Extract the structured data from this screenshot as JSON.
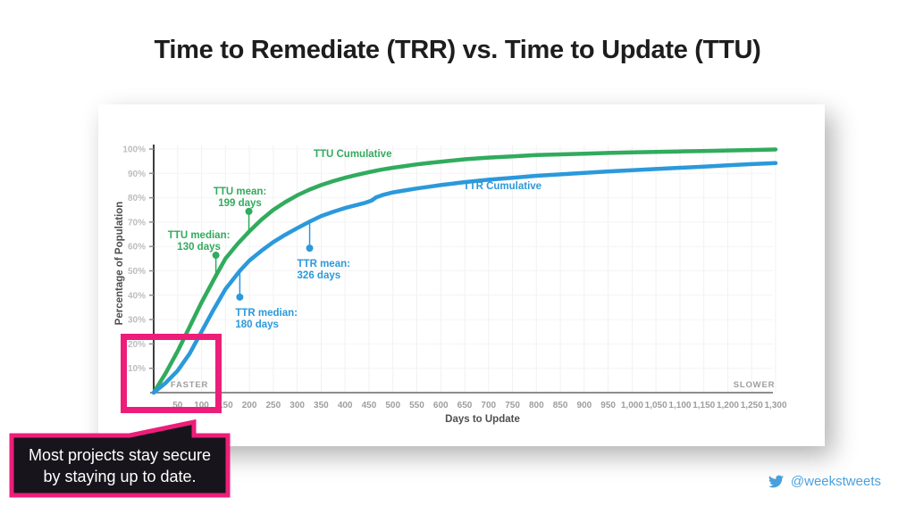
{
  "title": "Time to Remediate (TRR) vs. Time to Update (TTU)",
  "callout": {
    "line1": "Most projects stay secure",
    "line2": "by staying up to date."
  },
  "footer": {
    "handle": "@weekstweets",
    "icon": "twitter-bird-icon"
  },
  "colors": {
    "green": "#31AB5D",
    "blue": "#2B99DB",
    "pink": "#ED1E79",
    "callout_bg": "#17141C",
    "twitter_blue": "#4AA0DC",
    "title_text": "#1D1D1F",
    "axis_title": "#4F4F4F",
    "x_tick": "#9E9E9E",
    "y_tick": "#BDBDBD",
    "grid": "#F1F1F1",
    "x_axis_line": "#8E8E8E",
    "y_axis_line": "#3D3D3D"
  },
  "chart_data": {
    "type": "line",
    "title": "",
    "xlabel": "Days to Update",
    "ylabel": "Percentage of Population",
    "xlim": [
      0,
      1300
    ],
    "ylim": [
      0,
      100
    ],
    "grid": true,
    "faster_label": "FASTER",
    "slower_label": "SLOWER",
    "x_ticks": [
      50,
      100,
      150,
      200,
      250,
      300,
      350,
      400,
      450,
      500,
      550,
      600,
      650,
      700,
      750,
      800,
      850,
      900,
      950,
      1000,
      1050,
      1100,
      1150,
      1200,
      1250,
      1300
    ],
    "x_tick_labels": [
      "50",
      "100",
      "150",
      "200",
      "250",
      "300",
      "350",
      "400",
      "450",
      "500",
      "550",
      "600",
      "650",
      "700",
      "750",
      "800",
      "850",
      "900",
      "950",
      "1,000",
      "1,050",
      "1,100",
      "1,150",
      "1,200",
      "1,250",
      "1,300"
    ],
    "y_ticks": [
      10,
      20,
      30,
      40,
      50,
      60,
      70,
      80,
      90,
      100
    ],
    "y_tick_labels": [
      "10%",
      "20%",
      "30%",
      "40%",
      "50%",
      "60%",
      "70%",
      "80%",
      "90%",
      "100%"
    ],
    "series": [
      {
        "name": "TTU Cumulative",
        "color": "#31AB5D",
        "label_x": 416,
        "label_y": 96.7,
        "x": [
          0,
          25,
          50,
          75,
          100,
          130,
          150,
          175,
          199,
          225,
          250,
          275,
          300,
          325,
          350,
          375,
          400,
          425,
          450,
          475,
          500,
          525,
          550,
          575,
          600,
          650,
          700,
          750,
          800,
          850,
          900,
          950,
          1000,
          1050,
          1100,
          1150,
          1200,
          1250,
          1300
        ],
        "y": [
          0,
          8,
          17,
          27,
          37,
          48,
          55,
          61,
          66,
          71,
          75,
          78.2,
          81,
          83.3,
          85.2,
          86.8,
          88.2,
          89.4,
          90.5,
          91.5,
          92.3,
          93,
          93.7,
          94.3,
          94.8,
          95.8,
          96.5,
          97,
          97.5,
          97.8,
          98.1,
          98.4,
          98.6,
          98.8,
          99,
          99.2,
          99.4,
          99.6,
          99.8
        ]
      },
      {
        "name": "TTR Cumulative",
        "color": "#2B99DB",
        "label_x": 729,
        "label_y": 83.5,
        "x": [
          0,
          25,
          50,
          75,
          100,
          125,
          150,
          180,
          200,
          225,
          250,
          275,
          300,
          326,
          350,
          375,
          400,
          420,
          440,
          455,
          465,
          480,
          500,
          525,
          550,
          575,
          600,
          650,
          700,
          750,
          800,
          850,
          900,
          950,
          1000,
          1050,
          1100,
          1150,
          1200,
          1250,
          1300
        ],
        "y": [
          0,
          4,
          9,
          16,
          25,
          34,
          42.5,
          50,
          54.2,
          58.2,
          61.8,
          64.8,
          67.5,
          70.2,
          72.5,
          74.2,
          75.8,
          76.8,
          77.8,
          78.8,
          80.2,
          81.2,
          82.2,
          83,
          83.8,
          84.5,
          85.2,
          86.4,
          87.4,
          88.2,
          89,
          89.6,
          90.2,
          90.8,
          91.3,
          91.8,
          92.3,
          92.8,
          93.3,
          93.8,
          94.2
        ]
      }
    ],
    "annotations": [
      {
        "id": "ttu-median",
        "lines": [
          "TTU median:",
          "130 days"
        ],
        "x": 130,
        "curve_y": 48,
        "dot_y": 56.4,
        "side": "above",
        "anchor": "middle",
        "dx": -19,
        "color": "#31AB5D"
      },
      {
        "id": "ttu-mean",
        "lines": [
          "TTU mean:",
          "199 days"
        ],
        "x": 199,
        "curve_y": 66,
        "dot_y": 74.4,
        "side": "above",
        "anchor": "middle",
        "dx": -10,
        "color": "#31AB5D"
      },
      {
        "id": "ttr-median",
        "lines": [
          "TTR median:",
          "180 days"
        ],
        "x": 180,
        "curve_y": 50,
        "dot_y": 39.2,
        "side": "below",
        "anchor": "start",
        "dx": -5,
        "color": "#2B99DB"
      },
      {
        "id": "ttr-mean",
        "lines": [
          "TTR mean:",
          "326 days"
        ],
        "x": 326,
        "curve_y": 70.2,
        "dot_y": 59.3,
        "side": "below",
        "anchor": "start",
        "dx": -14,
        "color": "#2B99DB"
      }
    ]
  }
}
